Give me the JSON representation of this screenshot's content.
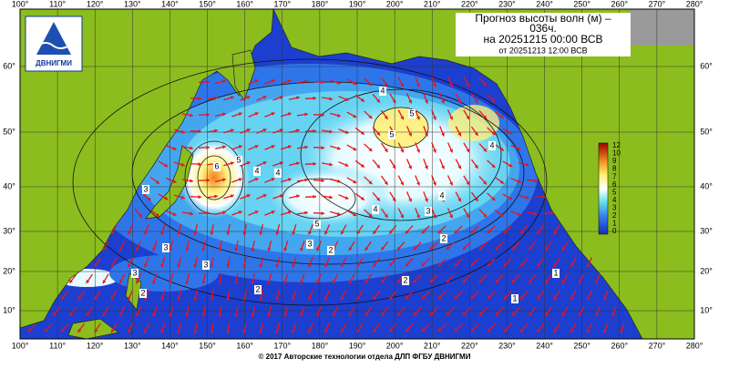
{
  "header": {
    "title_line1": "Прогноз высоты волн (м) –",
    "title_line2": "036ч.",
    "valid": "на 20251215 00:00 ВСВ",
    "issued": "от 20251213 12:00 ВСВ"
  },
  "logo": {
    "text": "ДВНИГМИ"
  },
  "lon_labels": [
    "100°",
    "110°",
    "120°",
    "130°",
    "140°",
    "150°",
    "160°",
    "170°",
    "180°",
    "190°",
    "200°",
    "210°",
    "220°",
    "230°",
    "240°",
    "250°",
    "260°",
    "270°",
    "280°"
  ],
  "lat_labels": [
    "60°",
    "50°",
    "40°",
    "30°",
    "20°",
    "10°"
  ],
  "colorbar": {
    "labels": [
      "12",
      "10",
      "9",
      "8",
      "7",
      "6",
      "5",
      "4",
      "3",
      "2",
      "1",
      "0"
    ]
  },
  "contour_labels": [
    "4",
    "5",
    "4",
    "3",
    "6",
    "5",
    "4",
    "3",
    "3",
    "2",
    "2",
    "3",
    "3",
    "2",
    "1",
    "2",
    "1",
    "2",
    "3",
    "4",
    "5",
    "4",
    "5",
    "4"
  ],
  "footer": {
    "copyright": "© 2017 Авторские технологии отдела ДЛП ФГБУ ДВНИГМИ"
  }
}
